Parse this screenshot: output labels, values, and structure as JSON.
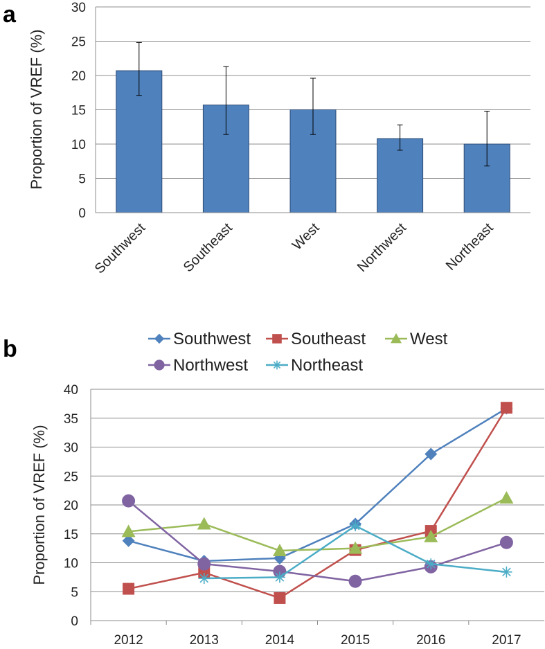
{
  "panels": {
    "a": "a",
    "b": "b"
  },
  "colors": {
    "Southwest": "#4f81bd",
    "Southeast": "#c0504d",
    "West": "#9bbb59",
    "Northwest": "#8064a2",
    "Northeast": "#4bacc6",
    "bar_fill": "#4f81bd",
    "bar_stroke": "#2e4b73"
  },
  "chart_data": [
    {
      "type": "bar",
      "panel": "a",
      "title": "",
      "xlabel": "",
      "ylabel": "Proportion of VREF (%)",
      "categories": [
        "Southwest",
        "Southeast",
        "West",
        "Northwest",
        "Northeast"
      ],
      "values": [
        20.7,
        15.7,
        15.0,
        10.8,
        10.0
      ],
      "error_low": [
        17.1,
        11.4,
        11.4,
        9.1,
        6.8
      ],
      "error_high": [
        24.8,
        21.3,
        19.6,
        12.8,
        14.8
      ],
      "ylim": [
        0,
        30
      ],
      "yticks": [
        "0",
        "5",
        "10",
        "15",
        "20",
        "25",
        "30"
      ],
      "grid": true
    },
    {
      "type": "line",
      "panel": "b",
      "title": "",
      "xlabel": "",
      "ylabel": "Proportion of VREF (%)",
      "x": [
        "2012",
        "2013",
        "2014",
        "2015",
        "2016",
        "2017"
      ],
      "ylim": [
        0,
        40
      ],
      "yticks": [
        "0",
        "5",
        "10",
        "15",
        "20",
        "25",
        "30",
        "35",
        "40"
      ],
      "legend_position": "top",
      "grid": true,
      "series": [
        {
          "name": "Southwest",
          "marker": "diamond",
          "values": [
            13.8,
            10.3,
            10.8,
            16.7,
            28.8,
            36.7
          ]
        },
        {
          "name": "Southeast",
          "marker": "square",
          "values": [
            5.5,
            8.3,
            3.9,
            12.2,
            15.5,
            36.8
          ]
        },
        {
          "name": "West",
          "marker": "triangle",
          "values": [
            15.4,
            16.7,
            12.1,
            12.5,
            14.5,
            21.2
          ]
        },
        {
          "name": "Northwest",
          "marker": "circle",
          "values": [
            20.7,
            9.8,
            8.5,
            6.8,
            9.3,
            13.5
          ]
        },
        {
          "name": "Northeast",
          "marker": "asterisk",
          "values": [
            null,
            7.3,
            7.5,
            16.4,
            9.8,
            8.4
          ]
        }
      ]
    }
  ]
}
